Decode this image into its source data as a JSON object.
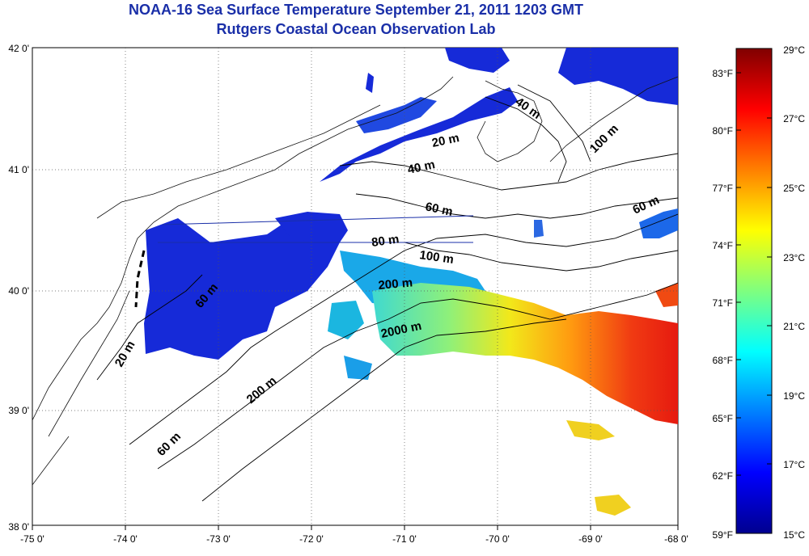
{
  "title_line1": "NOAA-16 Sea Surface Temperature September 21, 2011 1203 GMT",
  "title_line2": "Rutgers Coastal Ocean Observation Lab",
  "map": {
    "lon_ticks": [
      "-75 0'",
      "-74 0'",
      "-73 0'",
      "-72 0'",
      "-71 0'",
      "-70 0'",
      "-69 0'",
      "-68 0'"
    ],
    "lat_ticks": [
      "42 0'",
      "41 0'",
      "40 0'",
      "39 0'",
      "38 0'"
    ],
    "lon_range": [
      -75,
      -68
    ],
    "lat_range": [
      38,
      42
    ],
    "contour_labels": [
      "20 m",
      "40 m",
      "60 m",
      "80 m",
      "100 m",
      "200 m",
      "2000 m",
      "40 m",
      "100 m",
      "60 m",
      "20 m",
      "60 m",
      "200 m",
      "60 m"
    ]
  },
  "colorbar": {
    "fahrenheit_labels": [
      "83°F",
      "80°F",
      "77°F",
      "74°F",
      "71°F",
      "68°F",
      "65°F",
      "62°F",
      "59°F"
    ],
    "celsius_labels": [
      "29°C",
      "27°C",
      "25°C",
      "23°C",
      "21°C",
      "19°C",
      "17°C",
      "15°C"
    ],
    "colormap": "jet",
    "range_c": [
      15,
      29
    ]
  },
  "colors": {
    "title": "#1a2fa8",
    "cold": "#0a1fd6",
    "warm": "#e82a10"
  }
}
